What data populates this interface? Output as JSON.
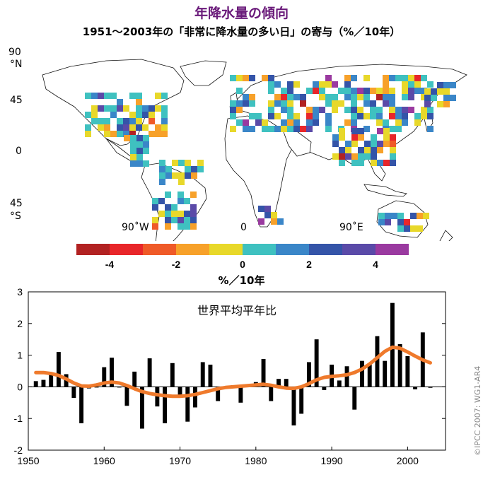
{
  "title": "年降水量の傾向",
  "subtitle": "1951～2003年の「非常に降水量の多い日」の寄与（%／10年）",
  "map": {
    "lat_labels": {
      "n90": "90",
      "n": "°N",
      "n45": "45",
      "eq": "0",
      "s45": "45",
      "s": "°S"
    },
    "lon_labels": {
      "w90": "90˚W",
      "zero": "0",
      "e90": "90˚E"
    }
  },
  "legend": {
    "colors": [
      "#b22222",
      "#e8262a",
      "#ef5a28",
      "#f7a12a",
      "#e8d82a",
      "#3fc1c0",
      "#3a86c8",
      "#3454a8",
      "#5a4aa8",
      "#9a3aa0"
    ],
    "bounds": [
      -5,
      -4,
      -3,
      -2,
      -1,
      0,
      1,
      2,
      3,
      4,
      5
    ],
    "tick_labels": [
      "-4",
      "-2",
      "0",
      "2",
      "4"
    ],
    "unit": "%／10年"
  },
  "chart_data": {
    "type": "bar",
    "title": "世界平均平年比",
    "xlabel": "",
    "ylabel": "",
    "x": [
      1951,
      1952,
      1953,
      1954,
      1955,
      1956,
      1957,
      1958,
      1959,
      1960,
      1961,
      1962,
      1963,
      1964,
      1965,
      1966,
      1967,
      1968,
      1969,
      1970,
      1971,
      1972,
      1973,
      1974,
      1975,
      1976,
      1977,
      1978,
      1979,
      1980,
      1981,
      1982,
      1983,
      1984,
      1985,
      1986,
      1987,
      1988,
      1989,
      1990,
      1991,
      1992,
      1993,
      1994,
      1995,
      1996,
      1997,
      1998,
      1999,
      2000,
      2001,
      2002,
      2003
    ],
    "values": [
      0.18,
      0.22,
      0.45,
      1.1,
      0.4,
      -0.35,
      -1.15,
      -0.05,
      0.0,
      0.62,
      0.92,
      0.0,
      -0.6,
      0.48,
      -1.32,
      0.9,
      -0.62,
      -1.15,
      0.75,
      -0.25,
      -1.1,
      -0.65,
      0.78,
      0.7,
      -0.45,
      -0.05,
      0.05,
      -0.5,
      0.05,
      0.15,
      0.88,
      -0.45,
      0.25,
      0.25,
      -1.22,
      -0.85,
      0.78,
      1.5,
      -0.1,
      0.7,
      0.2,
      0.65,
      -0.72,
      0.82,
      0.7,
      1.6,
      0.82,
      2.65,
      1.35,
      0.97,
      -0.08,
      1.72,
      -0.03
    ],
    "smooth": [
      0.45,
      0.45,
      0.42,
      0.36,
      0.25,
      0.12,
      0.03,
      0.02,
      0.06,
      0.12,
      0.15,
      0.12,
      0.04,
      -0.06,
      -0.15,
      -0.21,
      -0.25,
      -0.28,
      -0.3,
      -0.3,
      -0.28,
      -0.24,
      -0.18,
      -0.12,
      -0.06,
      -0.02,
      0.0,
      0.02,
      0.04,
      0.06,
      0.08,
      0.05,
      0.0,
      -0.04,
      -0.05,
      0.0,
      0.1,
      0.22,
      0.3,
      0.33,
      0.35,
      0.38,
      0.45,
      0.56,
      0.72,
      0.92,
      1.12,
      1.25,
      1.22,
      1.1,
      0.97,
      0.85,
      0.76
    ],
    "xlim": [
      1950,
      2005
    ],
    "ylim": [
      -2,
      3
    ],
    "y_ticks": [
      "3",
      "2",
      "1",
      "0",
      "-1",
      "-2"
    ],
    "x_ticks": [
      "1950",
      "1960",
      "1970",
      "1980",
      "1990",
      "2000"
    ],
    "bar_color": "#000000",
    "line_color": "#ef7a2c"
  },
  "copyright": "©IPCC 2007: WG1-AR4"
}
